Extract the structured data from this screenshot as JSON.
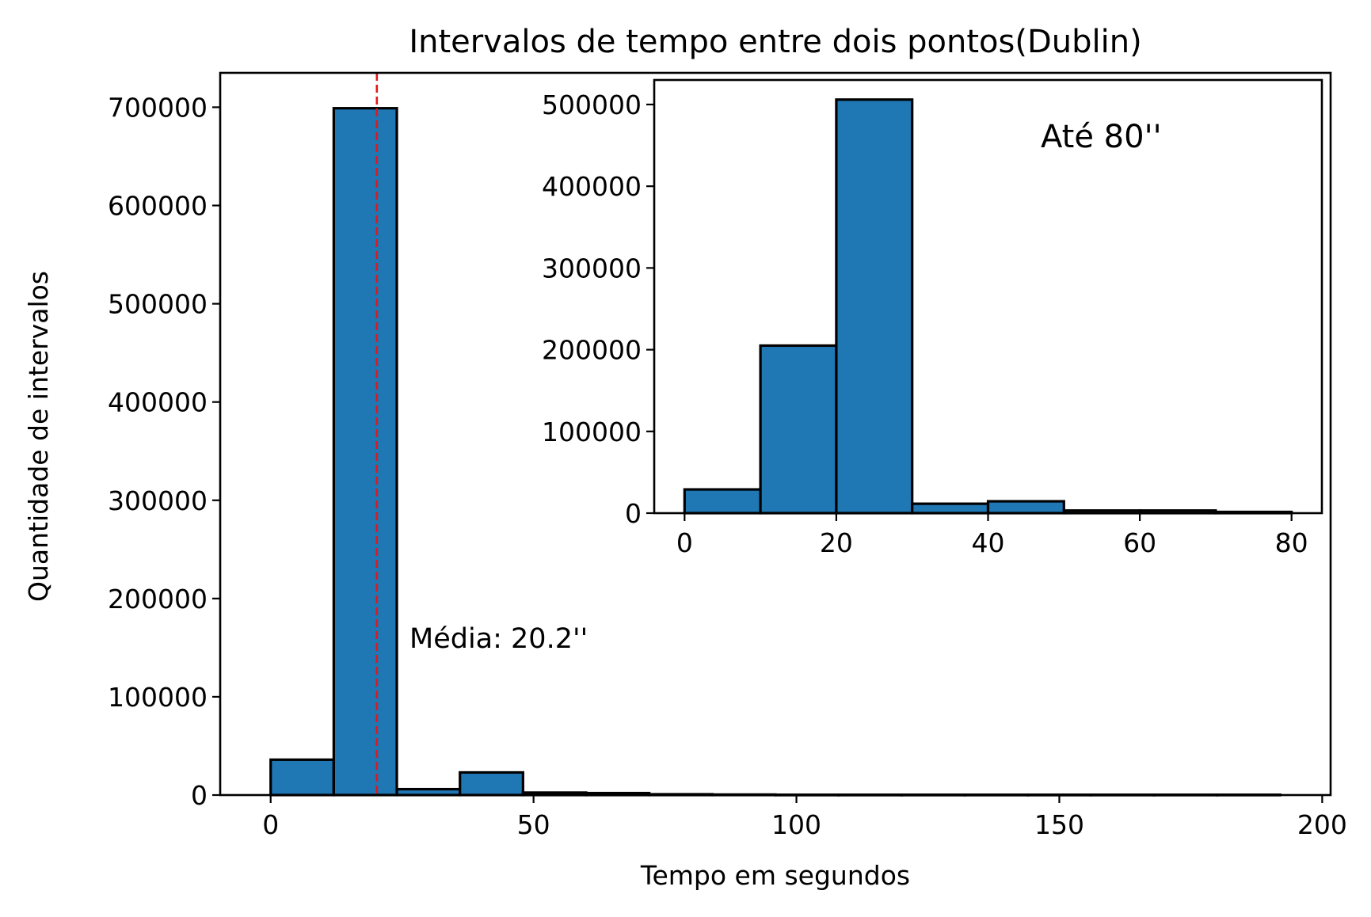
{
  "chart_data": [
    {
      "type": "bar",
      "title": "Intervalos de tempo entre dois pontos(Dublin)",
      "xlabel": "Tempo em segundos",
      "ylabel": "Quantidade de intervalos",
      "xlim": [
        -9.6,
        201.6
      ],
      "ylim": [
        0,
        735000
      ],
      "xticks": [
        0,
        50,
        100,
        150,
        200
      ],
      "xtick_labels": [
        "0",
        "50",
        "100",
        "150",
        "200"
      ],
      "yticks": [
        0,
        100000,
        200000,
        300000,
        400000,
        500000,
        600000,
        700000
      ],
      "ytick_labels": [
        "0",
        "100000",
        "200000",
        "300000",
        "400000",
        "500000",
        "600000",
        "700000"
      ],
      "bins": [
        {
          "x0": 0,
          "x1": 12,
          "value": 36000
        },
        {
          "x0": 12,
          "x1": 24,
          "value": 699000
        },
        {
          "x0": 24,
          "x1": 36,
          "value": 6000
        },
        {
          "x0": 36,
          "x1": 48,
          "value": 23000
        },
        {
          "x0": 48,
          "x1": 60,
          "value": 2500
        },
        {
          "x0": 60,
          "x1": 72,
          "value": 2000
        },
        {
          "x0": 72,
          "x1": 84,
          "value": 800
        },
        {
          "x0": 84,
          "x1": 96,
          "value": 500
        },
        {
          "x0": 96,
          "x1": 108,
          "value": 300
        },
        {
          "x0": 108,
          "x1": 120,
          "value": 300
        },
        {
          "x0": 120,
          "x1": 132,
          "value": 300
        },
        {
          "x0": 132,
          "x1": 144,
          "value": 300
        },
        {
          "x0": 144,
          "x1": 156,
          "value": 300
        },
        {
          "x0": 156,
          "x1": 168,
          "value": 300
        },
        {
          "x0": 168,
          "x1": 180,
          "value": 300
        },
        {
          "x0": 180,
          "x1": 192,
          "value": 300
        }
      ],
      "mean_line": {
        "x": 20.2,
        "color": "#e3181b",
        "style": "dashed"
      },
      "annotation": "Média: 20.2''",
      "bar_color": "#1f77b4",
      "grid": false
    },
    {
      "type": "bar",
      "annotation": "Até 80''",
      "xlim": [
        -4,
        84
      ],
      "ylim": [
        0,
        530000
      ],
      "xticks": [
        0,
        20,
        40,
        60,
        80
      ],
      "xtick_labels": [
        "0",
        "20",
        "40",
        "60",
        "80"
      ],
      "yticks": [
        0,
        100000,
        200000,
        300000,
        400000,
        500000
      ],
      "ytick_labels": [
        "0",
        "100000",
        "200000",
        "300000",
        "400000",
        "500000"
      ],
      "bins": [
        {
          "x0": 0,
          "x1": 10,
          "value": 29000
        },
        {
          "x0": 10,
          "x1": 20,
          "value": 205000
        },
        {
          "x0": 20,
          "x1": 30,
          "value": 506000
        },
        {
          "x0": 30,
          "x1": 40,
          "value": 11500
        },
        {
          "x0": 40,
          "x1": 50,
          "value": 14500
        },
        {
          "x0": 50,
          "x1": 60,
          "value": 3200
        },
        {
          "x0": 60,
          "x1": 70,
          "value": 3200
        },
        {
          "x0": 70,
          "x1": 80,
          "value": 1500
        }
      ],
      "bar_color": "#1f77b4",
      "grid": false
    }
  ]
}
